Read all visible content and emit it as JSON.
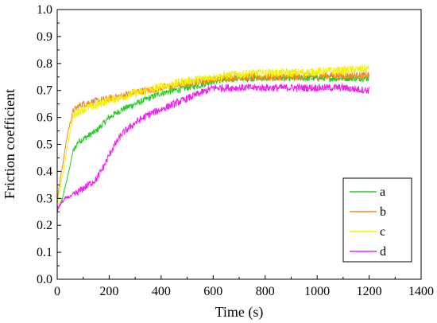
{
  "chart_data": {
    "type": "line",
    "xlabel": "Time (s)",
    "ylabel": "Friction coefficient",
    "xlim": [
      0,
      1400
    ],
    "ylim": [
      0,
      1.0
    ],
    "x_ticks": [
      0,
      200,
      400,
      600,
      800,
      1000,
      1200,
      1400
    ],
    "y_ticks": [
      0.0,
      0.1,
      0.2,
      0.3,
      0.4,
      0.5,
      0.6,
      0.7,
      0.8,
      0.9,
      1.0
    ],
    "grid": false,
    "legend_position": "bottom-right",
    "series": [
      {
        "name": "a",
        "color": "#22cc22",
        "x": [
          0,
          20,
          40,
          60,
          80,
          100,
          150,
          200,
          250,
          300,
          350,
          400,
          450,
          500,
          550,
          600,
          650,
          700,
          800,
          900,
          1000,
          1100,
          1200
        ],
        "y": [
          0.25,
          0.3,
          0.38,
          0.47,
          0.51,
          0.52,
          0.55,
          0.6,
          0.63,
          0.65,
          0.67,
          0.69,
          0.7,
          0.71,
          0.72,
          0.735,
          0.74,
          0.745,
          0.745,
          0.745,
          0.745,
          0.745,
          0.745
        ]
      },
      {
        "name": "b",
        "color": "#ee8822",
        "x": [
          0,
          20,
          40,
          60,
          80,
          100,
          150,
          200,
          250,
          300,
          350,
          400,
          500,
          600,
          700,
          800,
          900,
          1000,
          1100,
          1200
        ],
        "y": [
          0.3,
          0.42,
          0.54,
          0.62,
          0.64,
          0.65,
          0.66,
          0.67,
          0.68,
          0.695,
          0.7,
          0.71,
          0.725,
          0.74,
          0.75,
          0.75,
          0.75,
          0.755,
          0.755,
          0.755
        ]
      },
      {
        "name": "c",
        "color": "#f2f200",
        "x": [
          0,
          20,
          40,
          60,
          80,
          100,
          150,
          200,
          250,
          300,
          350,
          400,
          500,
          600,
          700,
          800,
          900,
          1000,
          1100,
          1200
        ],
        "y": [
          0.28,
          0.38,
          0.5,
          0.6,
          0.62,
          0.63,
          0.645,
          0.665,
          0.675,
          0.69,
          0.7,
          0.715,
          0.735,
          0.75,
          0.76,
          0.765,
          0.765,
          0.77,
          0.775,
          0.78
        ]
      },
      {
        "name": "d",
        "color": "#ee22ee",
        "x": [
          0,
          30,
          60,
          90,
          120,
          150,
          180,
          210,
          250,
          300,
          350,
          400,
          450,
          500,
          550,
          600,
          650,
          700,
          800,
          900,
          1000,
          1100,
          1200
        ],
        "y": [
          0.26,
          0.3,
          0.31,
          0.33,
          0.35,
          0.37,
          0.42,
          0.48,
          0.54,
          0.58,
          0.61,
          0.63,
          0.65,
          0.67,
          0.69,
          0.71,
          0.71,
          0.71,
          0.71,
          0.71,
          0.71,
          0.71,
          0.7
        ]
      }
    ]
  }
}
